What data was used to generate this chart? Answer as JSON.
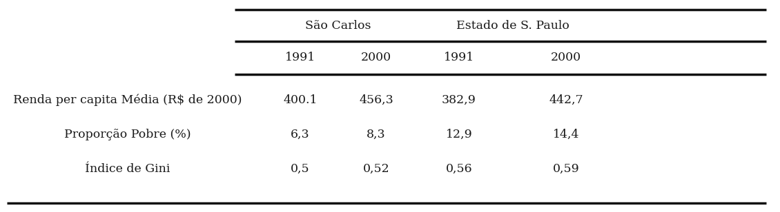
{
  "col_groups": [
    "São Carlos",
    "Estado de S. Paulo"
  ],
  "col_headers": [
    "1991",
    "2000",
    "1991",
    "2000"
  ],
  "row_labels": [
    "Renda per capita Média (R$ de 2000)",
    "Proporção Pobre (%)",
    "Índice de Gini"
  ],
  "data": [
    [
      "400.1",
      "456,3",
      "382,9",
      "442,7"
    ],
    [
      "6,3",
      "8,3",
      "12,9",
      "14,4"
    ],
    [
      "0,5",
      "0,52",
      "0,56",
      "0,59"
    ]
  ],
  "background_color": "#ffffff",
  "text_color": "#1a1a1a",
  "fontsize": 12.5,
  "line_color": "#111111",
  "line_thick": 2.5,
  "line_medium": 1.5
}
